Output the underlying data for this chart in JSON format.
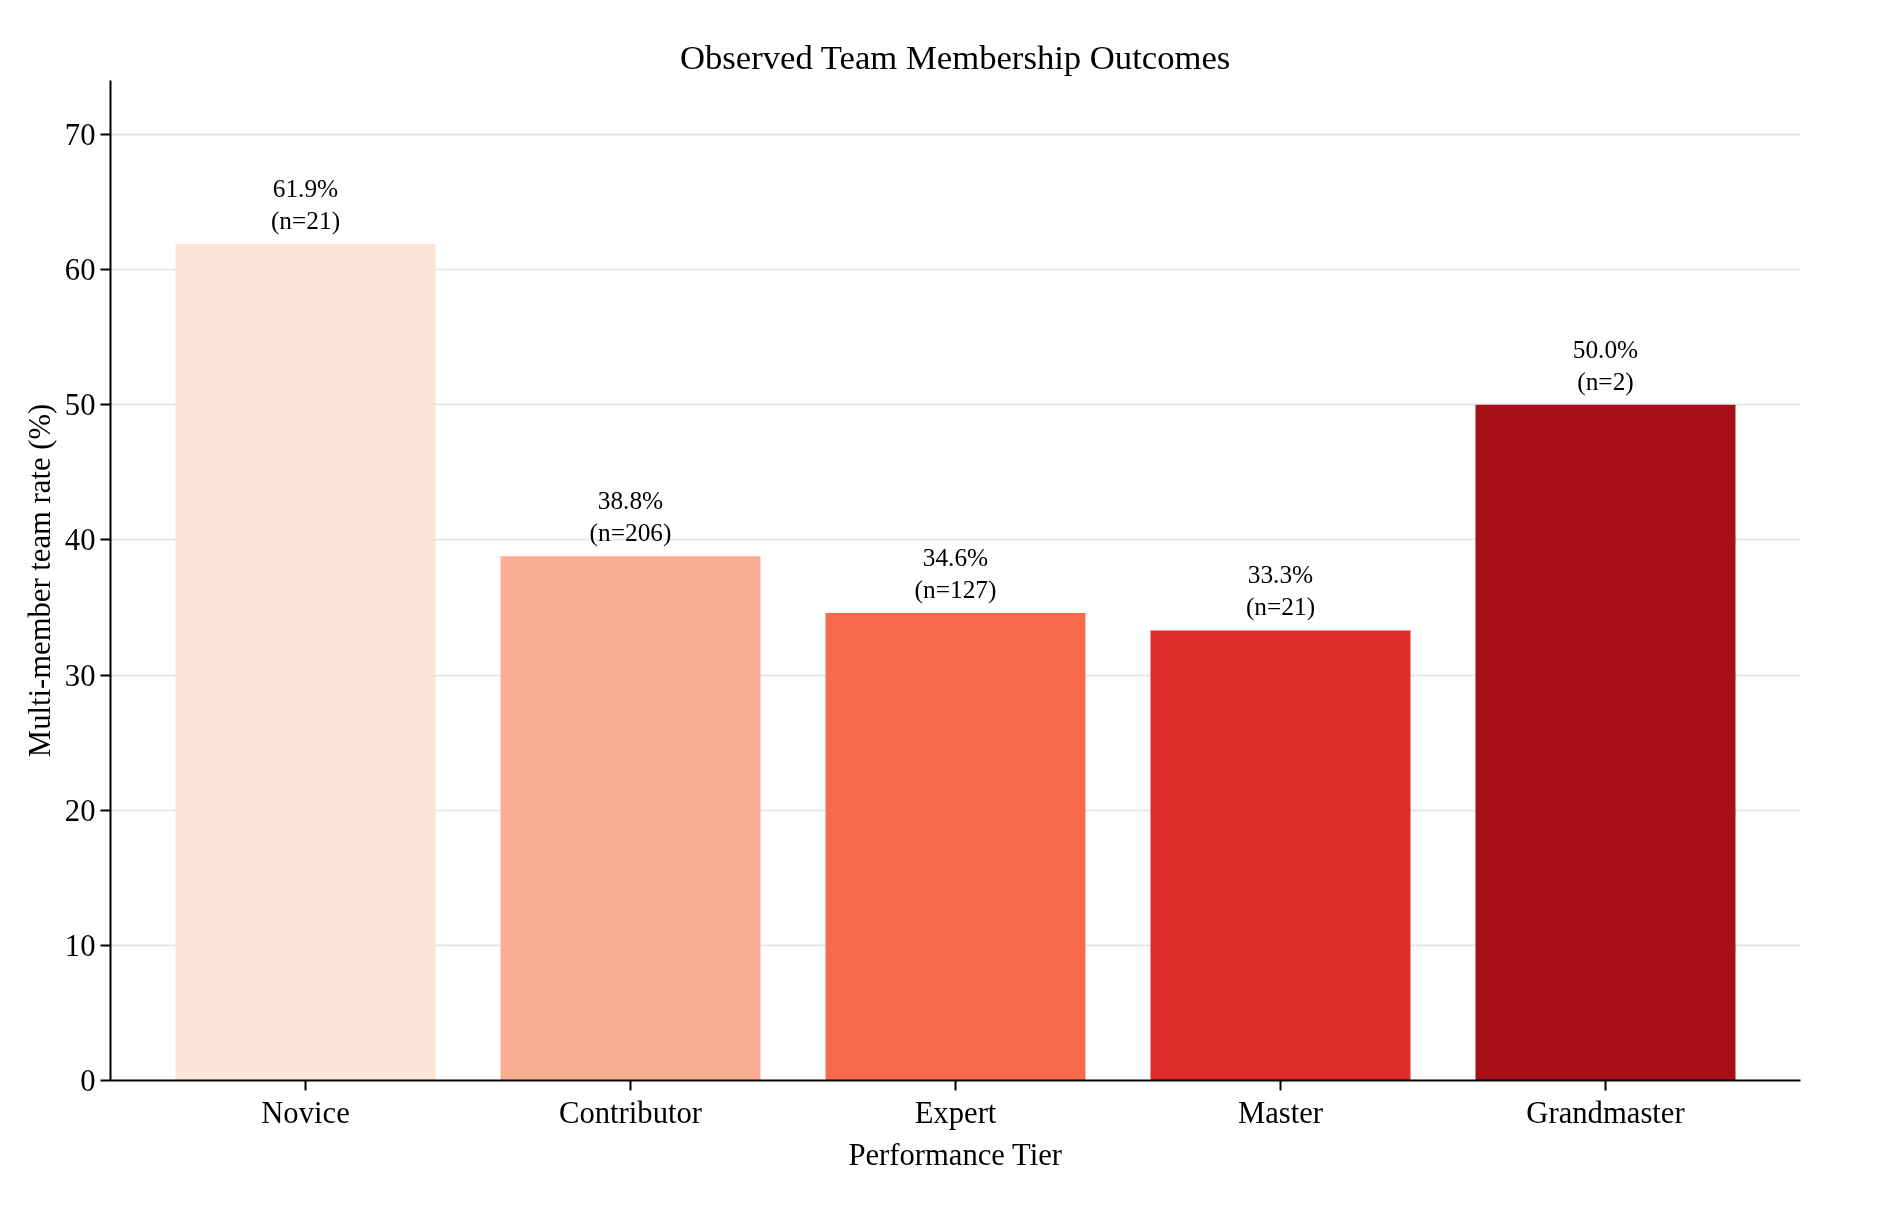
{
  "chart_data": {
    "type": "bar",
    "title": "Observed Team Membership Outcomes",
    "xlabel": "Performance Tier",
    "ylabel": "Multi-member team rate (%)",
    "categories": [
      "Novice",
      "Contributor",
      "Expert",
      "Master",
      "Grandmaster"
    ],
    "values": [
      61.9,
      38.8,
      34.6,
      33.3,
      50.0
    ],
    "colors": [
      "#fde3d8",
      "#f9ae91",
      "#f96a4c",
      "#de2d29",
      "#a50f15"
    ],
    "value_labels": [
      "61.9%\n(n=21)",
      "38.8%\n(n=206)",
      "34.6%\n(n=127)",
      "33.3%\n(n=21)",
      "50.0%\n(n=2)"
    ],
    "ylim": [
      0,
      74
    ],
    "yticks": [
      0,
      10,
      20,
      30,
      40,
      50,
      60,
      70
    ],
    "grid": "y"
  }
}
